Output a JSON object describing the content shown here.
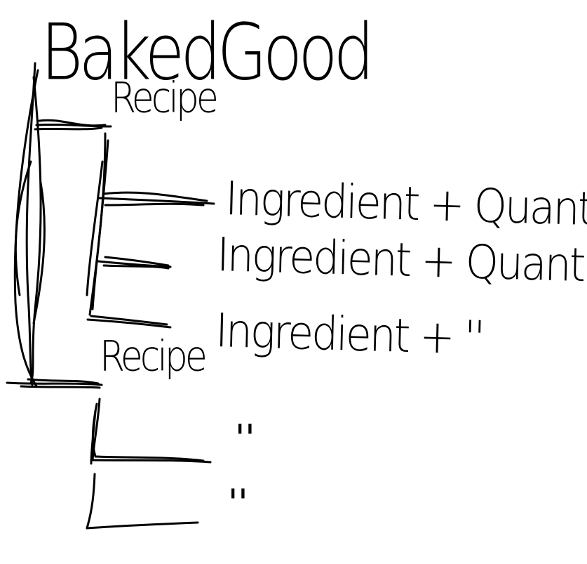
{
  "diagram": {
    "root": {
      "label": "BakedGood"
    },
    "recipes": [
      {
        "label": "Recipe",
        "items": [
          "Ingredient + Quantity",
          "Ingredient + Quantity",
          "Ingredient + ''"
        ]
      },
      {
        "label": "Recipe",
        "items": [
          "''",
          "''"
        ]
      }
    ]
  },
  "colors": {
    "ink": "#000000",
    "paper": "#ffffff"
  }
}
